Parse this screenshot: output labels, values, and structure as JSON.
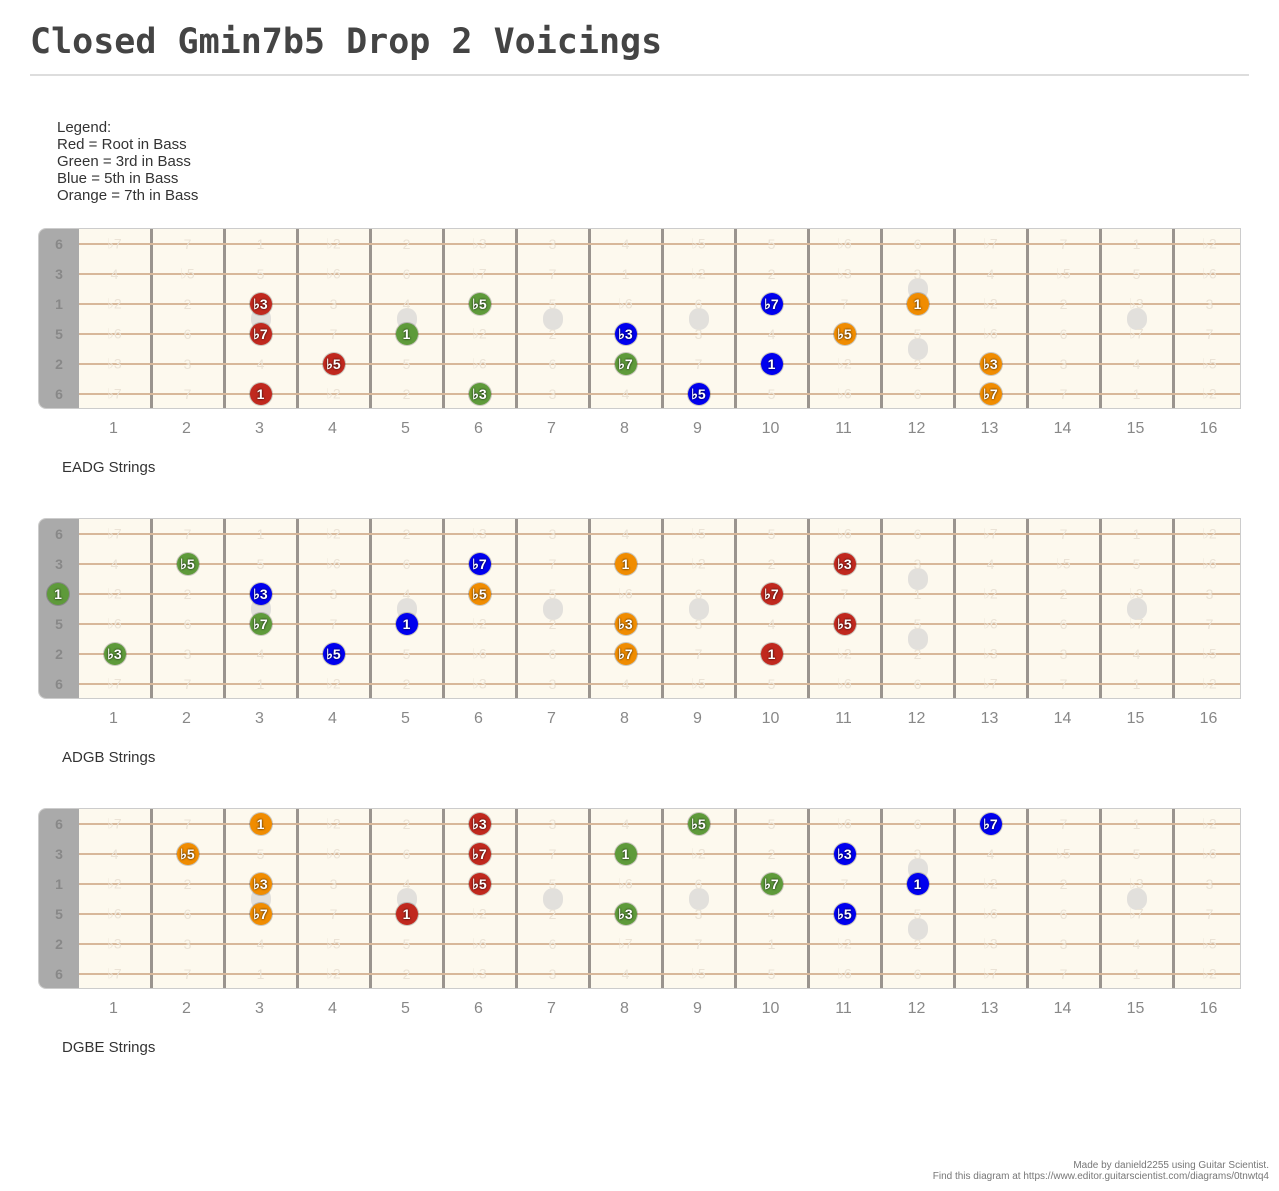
{
  "title": "Closed Gmin7b5 Drop 2 Voicings",
  "legend": [
    "Legend:",
    "Red = Root in Bass",
    "Green = 3rd in Bass",
    "Blue = 5th in Bass",
    "Orange = 7th in Bass"
  ],
  "colors": {
    "red": "#c0281e",
    "green": "#5e9a3a",
    "blue": "#0000ee",
    "orange": "#f08c00"
  },
  "string_labels": [
    "6",
    "3",
    "1",
    "5",
    "2",
    "6"
  ],
  "fret_numbers": [
    "1",
    "2",
    "3",
    "4",
    "5",
    "6",
    "7",
    "8",
    "9",
    "10",
    "11",
    "12",
    "13",
    "14",
    "15",
    "16"
  ],
  "fret_labels": [
    [
      "♭7",
      "7",
      "1",
      "♭2",
      "2",
      "♭3",
      "3",
      "4",
      "♭5",
      "5",
      "♭6",
      "6",
      "♭7",
      "7",
      "1",
      "♭2"
    ],
    [
      "4",
      "♭5",
      "5",
      "♭6",
      "6",
      "♭7",
      "7",
      "1",
      "♭2",
      "2",
      "♭3",
      "3",
      "4",
      "♭5",
      "5",
      "♭6"
    ],
    [
      "♭2",
      "2",
      "♭3",
      "3",
      "4",
      "♭5",
      "5",
      "♭6",
      "6",
      "♭7",
      "7",
      "1",
      "♭2",
      "2",
      "♭3",
      "3"
    ],
    [
      "♭6",
      "6",
      "♭7",
      "7",
      "1",
      "♭2",
      "2",
      "♭3",
      "3",
      "4",
      "♭5",
      "5",
      "♭6",
      "6",
      "♭7",
      "7"
    ],
    [
      "♭3",
      "3",
      "4",
      "♭5",
      "5",
      "♭6",
      "6",
      "♭7",
      "7",
      "1",
      "♭2",
      "2",
      "♭3",
      "3",
      "4",
      "♭5"
    ],
    [
      "♭7",
      "7",
      "1",
      "♭2",
      "2",
      "♭3",
      "3",
      "4",
      "♭5",
      "5",
      "♭6",
      "6",
      "♭7",
      "7",
      "1",
      "♭2"
    ]
  ],
  "boards": [
    {
      "name": "EADG Strings",
      "dots": [
        {
          "string": 2,
          "fret": 3,
          "label": "♭3",
          "color": "red"
        },
        {
          "string": 3,
          "fret": 3,
          "label": "♭7",
          "color": "red"
        },
        {
          "string": 4,
          "fret": 4,
          "label": "♭5",
          "color": "red"
        },
        {
          "string": 5,
          "fret": 3,
          "label": "1",
          "color": "red"
        },
        {
          "string": 2,
          "fret": 6,
          "label": "♭5",
          "color": "green"
        },
        {
          "string": 3,
          "fret": 5,
          "label": "1",
          "color": "green"
        },
        {
          "string": 4,
          "fret": 8,
          "label": "♭7",
          "color": "green"
        },
        {
          "string": 5,
          "fret": 6,
          "label": "♭3",
          "color": "green"
        },
        {
          "string": 3,
          "fret": 8,
          "label": "♭3",
          "color": "blue"
        },
        {
          "string": 2,
          "fret": 10,
          "label": "♭7",
          "color": "blue"
        },
        {
          "string": 4,
          "fret": 10,
          "label": "1",
          "color": "blue"
        },
        {
          "string": 5,
          "fret": 9,
          "label": "♭5",
          "color": "blue"
        },
        {
          "string": 2,
          "fret": 12,
          "label": "1",
          "color": "orange"
        },
        {
          "string": 3,
          "fret": 11,
          "label": "♭5",
          "color": "orange"
        },
        {
          "string": 4,
          "fret": 13,
          "label": "♭3",
          "color": "orange"
        },
        {
          "string": 5,
          "fret": 13,
          "label": "♭7",
          "color": "orange"
        }
      ]
    },
    {
      "name": "ADGB Strings",
      "dots": [
        {
          "string": 1,
          "fret": 2,
          "label": "♭5",
          "color": "green"
        },
        {
          "string": 2,
          "fret": 0,
          "label": "1",
          "color": "green"
        },
        {
          "string": 3,
          "fret": 3,
          "label": "♭7",
          "color": "green"
        },
        {
          "string": 4,
          "fret": 1,
          "label": "♭3",
          "color": "green"
        },
        {
          "string": 2,
          "fret": 3,
          "label": "♭3",
          "color": "blue"
        },
        {
          "string": 3,
          "fret": 5,
          "label": "1",
          "color": "blue"
        },
        {
          "string": 4,
          "fret": 4,
          "label": "♭5",
          "color": "blue"
        },
        {
          "string": 1,
          "fret": 6,
          "label": "♭7",
          "color": "blue"
        },
        {
          "string": 2,
          "fret": 6,
          "label": "♭5",
          "color": "orange"
        },
        {
          "string": 1,
          "fret": 8,
          "label": "1",
          "color": "orange"
        },
        {
          "string": 3,
          "fret": 8,
          "label": "♭3",
          "color": "orange"
        },
        {
          "string": 4,
          "fret": 8,
          "label": "♭7",
          "color": "orange"
        },
        {
          "string": 1,
          "fret": 11,
          "label": "♭3",
          "color": "red"
        },
        {
          "string": 2,
          "fret": 10,
          "label": "♭7",
          "color": "red"
        },
        {
          "string": 3,
          "fret": 11,
          "label": "♭5",
          "color": "red"
        },
        {
          "string": 4,
          "fret": 10,
          "label": "1",
          "color": "red"
        }
      ]
    },
    {
      "name": "DGBE Strings",
      "dots": [
        {
          "string": 0,
          "fret": 3,
          "label": "1",
          "color": "orange"
        },
        {
          "string": 1,
          "fret": 2,
          "label": "♭5",
          "color": "orange"
        },
        {
          "string": 2,
          "fret": 3,
          "label": "♭3",
          "color": "orange"
        },
        {
          "string": 3,
          "fret": 3,
          "label": "♭7",
          "color": "orange"
        },
        {
          "string": 0,
          "fret": 6,
          "label": "♭3",
          "color": "red"
        },
        {
          "string": 1,
          "fret": 6,
          "label": "♭7",
          "color": "red"
        },
        {
          "string": 2,
          "fret": 6,
          "label": "♭5",
          "color": "red"
        },
        {
          "string": 3,
          "fret": 5,
          "label": "1",
          "color": "red"
        },
        {
          "string": 0,
          "fret": 9,
          "label": "♭5",
          "color": "green"
        },
        {
          "string": 1,
          "fret": 8,
          "label": "1",
          "color": "green"
        },
        {
          "string": 2,
          "fret": 10,
          "label": "♭7",
          "color": "green"
        },
        {
          "string": 3,
          "fret": 8,
          "label": "♭3",
          "color": "green"
        },
        {
          "string": 0,
          "fret": 13,
          "label": "♭7",
          "color": "blue"
        },
        {
          "string": 1,
          "fret": 11,
          "label": "♭3",
          "color": "blue"
        },
        {
          "string": 2,
          "fret": 12,
          "label": "1",
          "color": "blue"
        },
        {
          "string": 3,
          "fret": 11,
          "label": "♭5",
          "color": "blue"
        }
      ]
    }
  ],
  "footer": [
    "Made by danield2255 using Guitar Scientist.",
    "Find this diagram at https://www.editor.guitarscientist.com/diagrams/0tnwtq4"
  ]
}
